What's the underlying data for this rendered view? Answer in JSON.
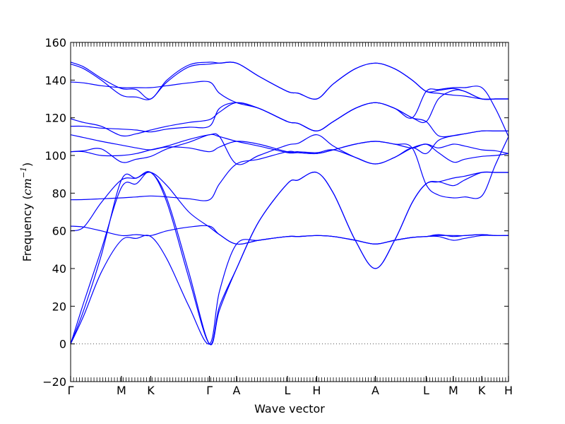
{
  "chart_data": {
    "type": "line",
    "xlabel": "Wave vector",
    "ylabel_text": "Frequency (",
    "ylabel_math": "cm",
    "ylabel_exp": "−1",
    "ylabel_close": ")",
    "ylim": [
      -20,
      160
    ],
    "xlim": [
      0,
      100
    ],
    "yticks": [
      -20,
      0,
      20,
      40,
      60,
      80,
      100,
      120,
      140,
      160
    ],
    "ytick_labels": [
      "−20",
      "0",
      "20",
      "40",
      "60",
      "80",
      "100",
      "120",
      "140",
      "160"
    ],
    "grid": false,
    "legend": "none",
    "zero_line": {
      "y": 0,
      "style": "dotted",
      "color": "#555555"
    },
    "line_color": "#0000ff",
    "high_symmetry_points": [
      {
        "label": "Γ",
        "x": 0.0
      },
      {
        "label": "M",
        "x": 11.6
      },
      {
        "label": "K",
        "x": 18.3
      },
      {
        "label": "Γ",
        "x": 31.7
      },
      {
        "label": "A",
        "x": 37.9
      },
      {
        "label": "L",
        "x": 49.5
      },
      {
        "label": "H",
        "x": 56.2
      },
      {
        "label": "A",
        "x": 69.6
      },
      {
        "label": "L",
        "x": 81.2
      },
      {
        "label": "M",
        "x": 87.4
      },
      {
        "label": "K",
        "x": 93.9
      },
      {
        "label": "H",
        "x": 100.0
      }
    ],
    "series": [
      {
        "x": [
          0,
          3,
          7,
          11.6,
          15,
          18.3,
          22,
          27,
          31.7,
          34,
          37.9,
          43,
          49.5,
          52,
          56.2,
          60,
          65,
          69.6,
          74,
          78,
          81.2,
          84,
          87.4,
          90,
          93.9,
          97,
          100
        ],
        "y": [
          0,
          22,
          50,
          83,
          85,
          91,
          75,
          35,
          0,
          20,
          40,
          65,
          85,
          87,
          91,
          80,
          55,
          40,
          55,
          75,
          85,
          86,
          84,
          87,
          91,
          91,
          91
        ]
      },
      {
        "x": [
          0,
          3,
          7,
          11.6,
          15,
          18.3,
          22,
          27,
          31.7,
          34,
          37.9,
          43,
          49.5,
          52,
          56.2,
          60,
          65,
          69.6,
          74,
          78,
          81.2,
          84,
          87.4,
          90,
          93.9,
          97,
          100
        ],
        "y": [
          0,
          18,
          47,
          87,
          88,
          91,
          77,
          38,
          0,
          18,
          40,
          65,
          85,
          87,
          91,
          80,
          55,
          40,
          55,
          75,
          85,
          86,
          88,
          89,
          91,
          91,
          91
        ]
      },
      {
        "x": [
          0,
          3,
          7,
          11.6,
          15,
          18.3,
          22,
          27,
          31.7,
          34,
          37.9,
          43,
          49.5,
          52,
          56.2,
          60,
          65,
          69.6,
          74,
          78,
          81.2,
          84,
          87.4,
          90,
          93.9,
          97,
          100
        ],
        "y": [
          0,
          15,
          38,
          55,
          56,
          57,
          45,
          20,
          0,
          28,
          53,
          55,
          57,
          57,
          57.5,
          57,
          55,
          53,
          55,
          56.5,
          57,
          57,
          55,
          56,
          57.5,
          57.5,
          57.5
        ]
      },
      {
        "x": [
          0,
          3,
          7,
          11.6,
          15,
          18.3,
          22,
          27,
          31.7,
          34,
          37.9,
          43,
          49.5,
          52,
          56.2,
          60,
          65,
          69.6,
          74,
          78,
          81.2,
          84,
          87.4,
          90,
          93.9,
          97,
          100
        ],
        "y": [
          60,
          62,
          75,
          87,
          88,
          91,
          84,
          70,
          62,
          58,
          53,
          55,
          57,
          57,
          57.5,
          57,
          55,
          53,
          55,
          56.5,
          57,
          57.5,
          57.5,
          57.5,
          58,
          57.5,
          57.5
        ]
      },
      {
        "x": [
          0,
          3,
          7,
          11.6,
          15,
          18.3,
          22,
          27,
          31.7,
          34,
          37.9,
          43,
          49.5,
          52,
          56.2,
          60,
          65,
          69.6,
          74,
          78,
          81.2,
          84,
          87.4,
          90,
          93.9,
          97,
          100
        ],
        "y": [
          62.5,
          62,
          60,
          57.5,
          58,
          57.5,
          60,
          62,
          62.5,
          58,
          53,
          55,
          57,
          57,
          57.5,
          57,
          55,
          53,
          55,
          56.5,
          57,
          58,
          57,
          57.5,
          58,
          57.5,
          57.5
        ]
      },
      {
        "x": [
          0,
          3,
          7,
          11.6,
          15,
          18.3,
          22,
          27,
          31.7,
          34,
          37.9,
          43,
          49.5,
          52,
          56.2,
          60,
          65,
          69.6,
          74,
          78,
          81.2,
          84,
          87.4,
          90,
          93.9,
          97,
          100
        ],
        "y": [
          76.5,
          76.6,
          77,
          77.5,
          78,
          78.5,
          78,
          77,
          76.5,
          85,
          95.5,
          98,
          102,
          101.5,
          101,
          103,
          106,
          107.5,
          106,
          104,
          84.5,
          79,
          77.5,
          78,
          78.5,
          95,
          110
        ]
      },
      {
        "x": [
          0,
          3,
          7,
          11.6,
          15,
          18.3,
          22,
          27,
          31.7,
          34,
          37.9,
          43,
          49.5,
          52,
          56.2,
          60,
          65,
          69.6,
          74,
          78,
          81.2,
          84,
          87.4,
          90,
          93.9,
          97,
          100
        ],
        "y": [
          102,
          102.5,
          103.5,
          96.5,
          98,
          99.5,
          103.5,
          107,
          111,
          110,
          107.5,
          105,
          101.5,
          101.5,
          101,
          103,
          106,
          107.5,
          106,
          104,
          106,
          101.5,
          96.5,
          98,
          99.5,
          100,
          101
        ]
      },
      {
        "x": [
          0,
          3,
          7,
          11.6,
          15,
          18.3,
          22,
          27,
          31.7,
          34,
          37.9,
          43,
          49.5,
          52,
          56.2,
          60,
          65,
          69.6,
          74,
          78,
          81.2,
          84,
          87.4,
          90,
          93.9,
          97,
          100
        ],
        "y": [
          111,
          109.5,
          107.5,
          105.5,
          104,
          103,
          104.5,
          104,
          102,
          104.5,
          107.5,
          106,
          102,
          102,
          101.5,
          103,
          99,
          95.5,
          99,
          104,
          106,
          104,
          106,
          105,
          103,
          102.5,
          101
        ]
      },
      {
        "x": [
          0,
          3,
          7,
          11.6,
          15,
          18.3,
          22,
          27,
          31.7,
          34,
          37.9,
          43,
          49.5,
          52,
          56.2,
          60,
          65,
          69.6,
          74,
          78,
          81.2,
          84,
          87.4,
          90,
          93.9,
          97,
          100
        ],
        "y": [
          102,
          102,
          100,
          100,
          101,
          103,
          105,
          108.5,
          111,
          110,
          95.5,
          100,
          105.5,
          106.5,
          111,
          105,
          99,
          95.5,
          99,
          104,
          101,
          108,
          110.5,
          111.5,
          113,
          113,
          113
        ]
      },
      {
        "x": [
          0,
          3,
          7,
          11.6,
          15,
          18.3,
          22,
          27,
          31.7,
          34,
          37.9,
          43,
          49.5,
          52,
          56.2,
          60,
          65,
          69.6,
          74,
          78,
          81.2,
          84,
          87.4,
          90,
          93.9,
          97,
          100
        ],
        "y": [
          115.5,
          115.5,
          114.5,
          114,
          113.5,
          112.5,
          114,
          115,
          115.5,
          125,
          128,
          125,
          118,
          117,
          113,
          118,
          125,
          128,
          125,
          120,
          118,
          130,
          134.5,
          134,
          130,
          130,
          130
        ]
      },
      {
        "x": [
          0,
          3,
          7,
          11.6,
          15,
          18.3,
          22,
          27,
          31.7,
          34,
          37.9,
          43,
          49.5,
          52,
          56.2,
          60,
          65,
          69.6,
          74,
          78,
          81.2,
          84,
          87.4,
          90,
          93.9,
          97,
          100
        ],
        "y": [
          119.5,
          117.5,
          115.5,
          110.5,
          111.5,
          113.5,
          115.5,
          117.5,
          119,
          123,
          128,
          125,
          118,
          117,
          113,
          118,
          125,
          128,
          125,
          120,
          118,
          110.5,
          110.5,
          111.5,
          113,
          113,
          113
        ]
      },
      {
        "x": [
          0,
          3,
          7,
          11.6,
          15,
          18.3,
          22,
          27,
          31.7,
          34,
          37.9,
          43,
          49.5,
          52,
          56.2,
          60,
          65,
          69.6,
          74,
          78,
          81.2,
          84,
          87.4,
          90,
          93.9,
          97,
          100
        ],
        "y": [
          139,
          138.5,
          137,
          136,
          136,
          136,
          137,
          138.5,
          139,
          133,
          128,
          125,
          118,
          117,
          113,
          118,
          125,
          128,
          125,
          120,
          134,
          135,
          136,
          136,
          136,
          125,
          110
        ]
      },
      {
        "x": [
          0,
          3,
          7,
          11.6,
          15,
          18.3,
          22,
          27,
          31.7,
          34,
          37.9,
          43,
          49.5,
          52,
          56.2,
          60,
          65,
          69.6,
          74,
          78,
          81.2,
          84,
          87.4,
          90,
          93.9,
          97,
          100
        ],
        "y": [
          148.5,
          146,
          140,
          132,
          131,
          130,
          139,
          147,
          148.5,
          149,
          149,
          142,
          134,
          133,
          130,
          138,
          146,
          149,
          146,
          140,
          134,
          133,
          132,
          131.5,
          130,
          130,
          130
        ]
      },
      {
        "x": [
          0,
          3,
          7,
          11.6,
          15,
          18.3,
          22,
          27,
          31.7,
          34,
          37.9,
          43,
          49.5,
          52,
          56.2,
          60,
          65,
          69.6,
          74,
          78,
          81.2,
          84,
          87.4,
          90,
          93.9,
          97,
          100
        ],
        "y": [
          149.5,
          147,
          141,
          135.5,
          135,
          130,
          140,
          148,
          149.5,
          149,
          149,
          142,
          134,
          133,
          130,
          138,
          146,
          149,
          146,
          140,
          134,
          134.5,
          135.5,
          134,
          130,
          130,
          130
        ]
      }
    ]
  }
}
